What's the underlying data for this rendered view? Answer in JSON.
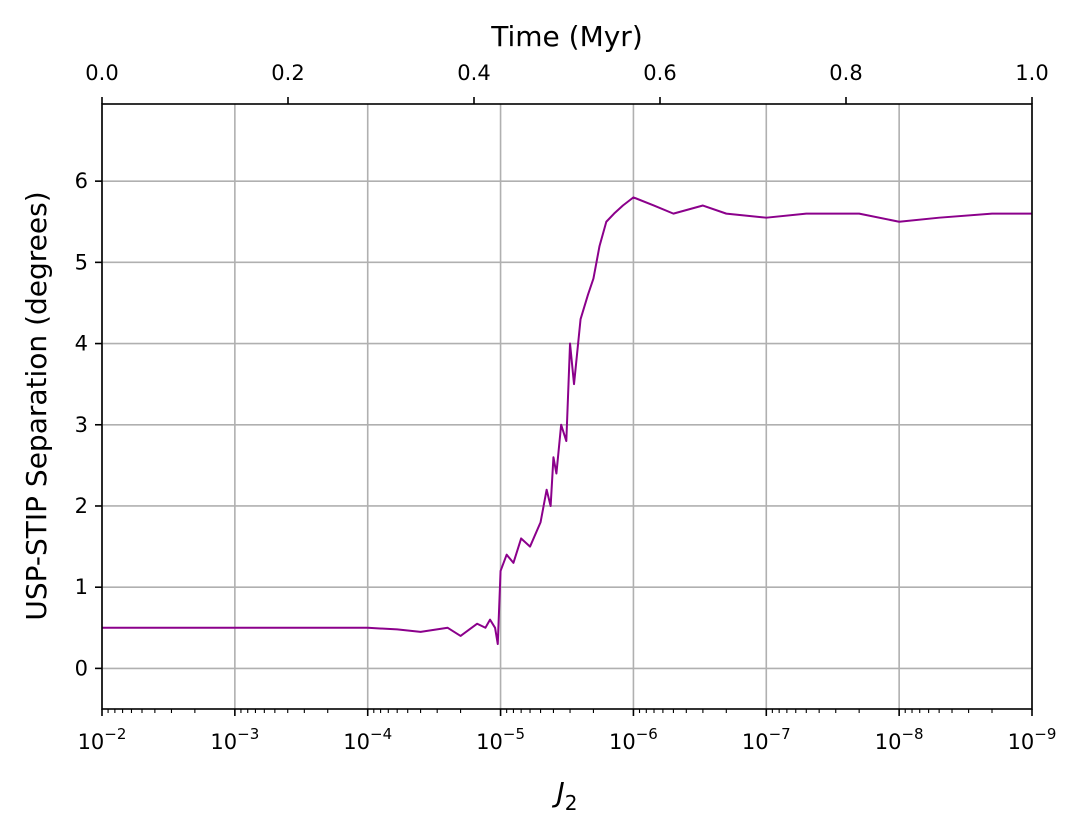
{
  "chart_data": {
    "type": "line",
    "ylabel": "USP-STIP Separation (degrees)",
    "xlabel": "J",
    "xlabel_subscript": "2",
    "top_xlabel": "Time (Myr)",
    "x_scale": "log-reversed",
    "xlim": [
      0.01,
      1e-09
    ],
    "ylim": [
      -0.5,
      6.95
    ],
    "top_xlim": [
      0.0,
      1.0
    ],
    "grid": true,
    "line_color": "#8b008b",
    "x_ticks": [
      {
        "value": 0.01,
        "base": "10",
        "exp": "−2"
      },
      {
        "value": 0.001,
        "base": "10",
        "exp": "−3"
      },
      {
        "value": 0.0001,
        "base": "10",
        "exp": "−4"
      },
      {
        "value": 1e-05,
        "base": "10",
        "exp": "−5"
      },
      {
        "value": 1e-06,
        "base": "10",
        "exp": "−6"
      },
      {
        "value": 1e-07,
        "base": "10",
        "exp": "−7"
      },
      {
        "value": 1e-08,
        "base": "10",
        "exp": "−8"
      },
      {
        "value": 1e-09,
        "base": "10",
        "exp": "−9"
      }
    ],
    "top_ticks": [
      {
        "value": 0.0,
        "label": "0.0"
      },
      {
        "value": 0.2,
        "label": "0.2"
      },
      {
        "value": 0.4,
        "label": "0.4"
      },
      {
        "value": 0.6,
        "label": "0.6"
      },
      {
        "value": 0.8,
        "label": "0.8"
      },
      {
        "value": 1.0,
        "label": "1.0"
      }
    ],
    "y_ticks": [
      {
        "value": 0,
        "label": "0"
      },
      {
        "value": 1,
        "label": "1"
      },
      {
        "value": 2,
        "label": "2"
      },
      {
        "value": 3,
        "label": "3"
      },
      {
        "value": 4,
        "label": "4"
      },
      {
        "value": 5,
        "label": "5"
      },
      {
        "value": 6,
        "label": "6"
      }
    ],
    "series": [
      {
        "x": [
          0.01,
          0.001,
          0.0003,
          0.0001,
          6e-05,
          4e-05,
          2.5e-05,
          2e-05,
          1.5e-05,
          1.3e-05,
          1.2e-05,
          1.1e-05,
          1.05e-05,
          1e-05,
          9e-06,
          8e-06,
          7e-06,
          6e-06,
          5e-06,
          4.5e-06,
          4.2e-06,
          4e-06,
          3.8e-06,
          3.5e-06,
          3.2e-06,
          3e-06,
          2.8e-06,
          2.5e-06,
          2.2e-06,
          2e-06,
          1.8e-06,
          1.6e-06,
          1.4e-06,
          1.2e-06,
          1e-06,
          7e-07,
          5e-07,
          3e-07,
          2e-07,
          1e-07,
          5e-08,
          2e-08,
          1e-08,
          5e-09,
          2e-09,
          1e-09
        ],
        "y": [
          0.5,
          0.5,
          0.5,
          0.5,
          0.48,
          0.45,
          0.5,
          0.4,
          0.55,
          0.5,
          0.6,
          0.5,
          0.3,
          1.2,
          1.4,
          1.3,
          1.6,
          1.5,
          1.8,
          2.2,
          2.0,
          2.6,
          2.4,
          3.0,
          2.8,
          4.0,
          3.5,
          4.3,
          4.6,
          4.8,
          5.2,
          5.5,
          5.6,
          5.7,
          5.8,
          5.7,
          5.6,
          5.7,
          5.6,
          5.55,
          5.6,
          5.6,
          5.5,
          5.55,
          5.6,
          5.6
        ]
      }
    ]
  }
}
